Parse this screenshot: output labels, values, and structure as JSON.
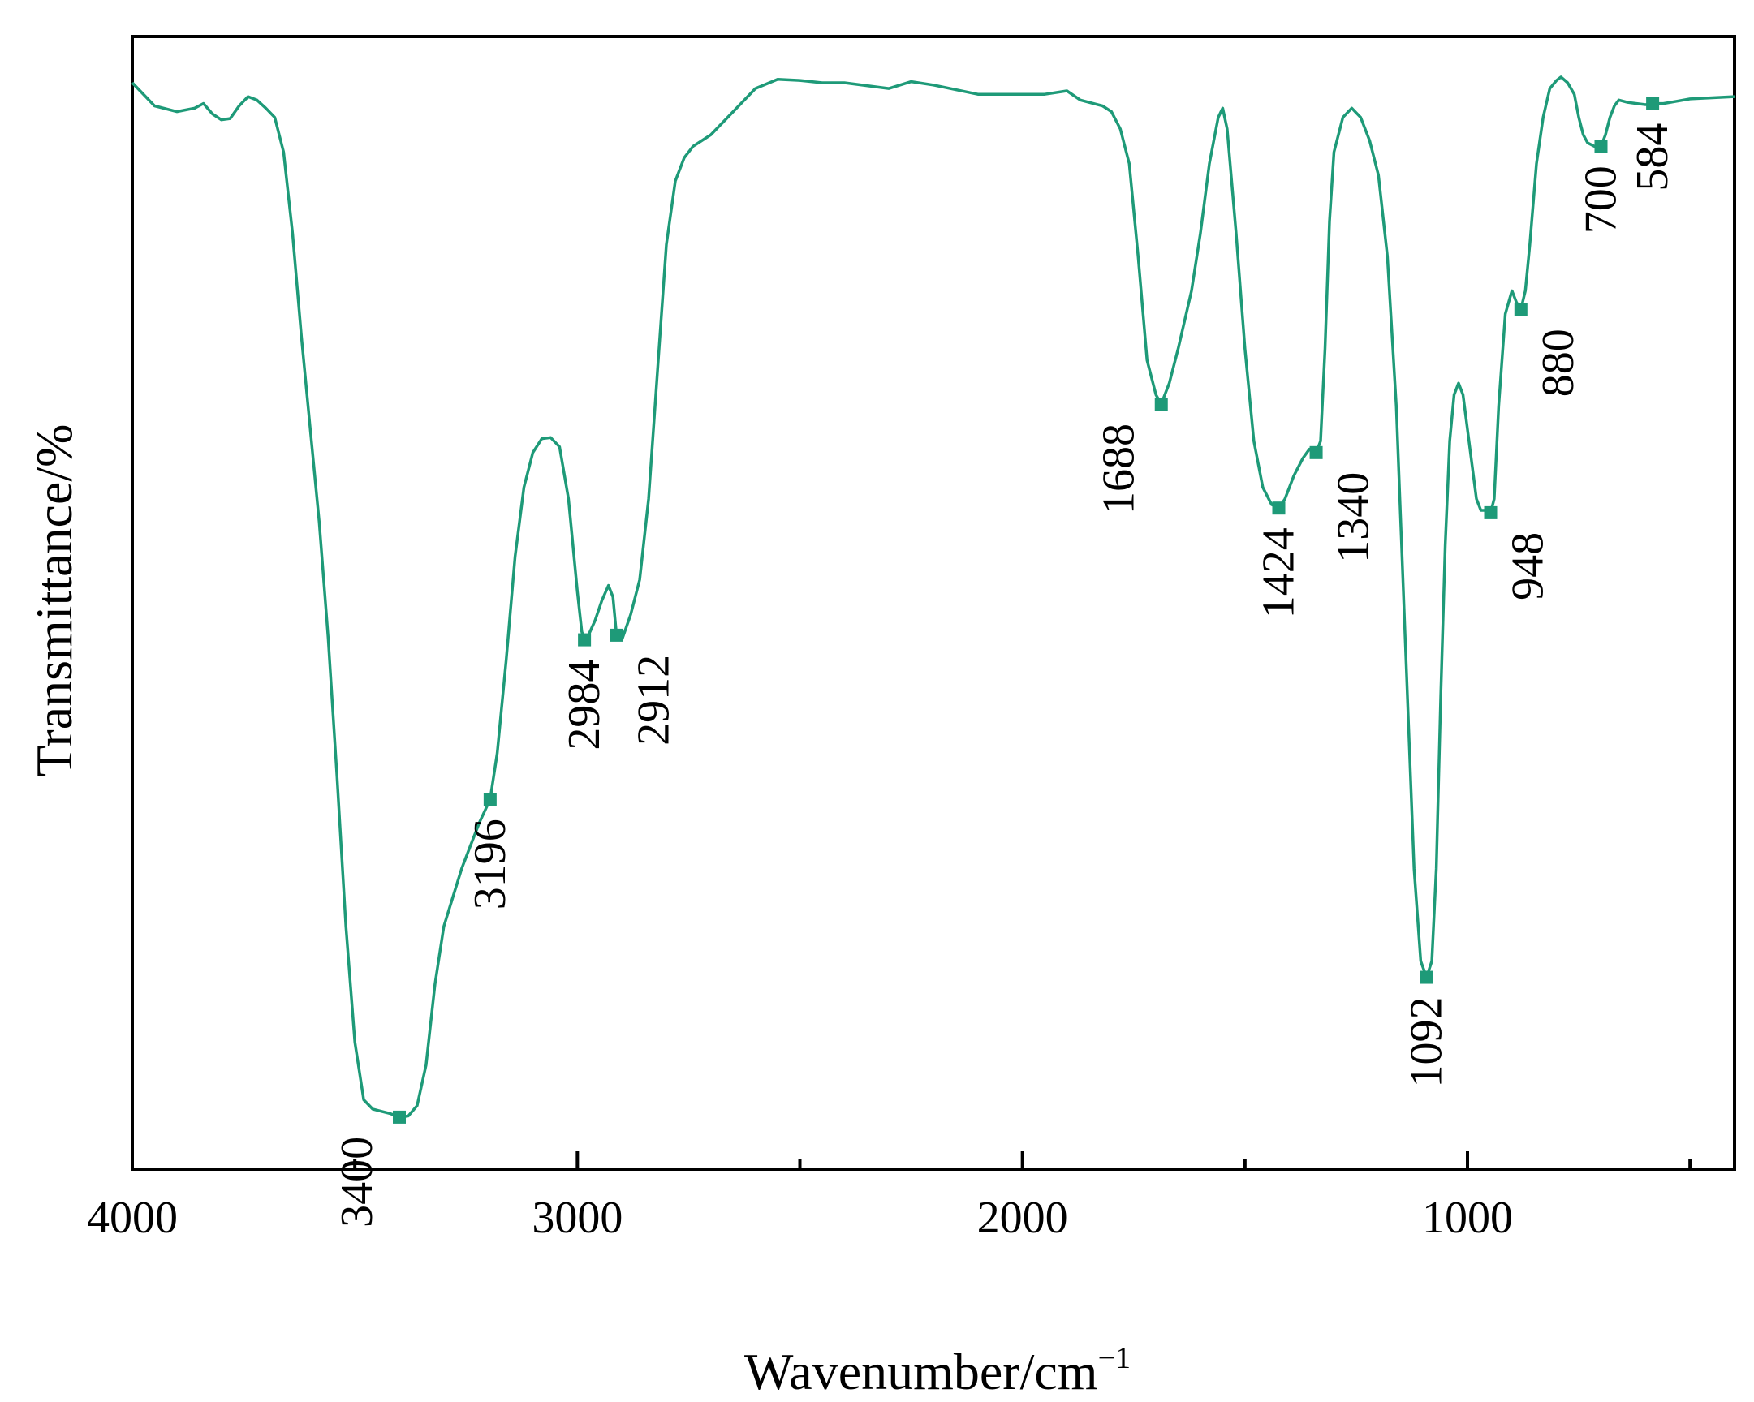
{
  "chart_data": {
    "type": "line",
    "title": "",
    "xlabel": "Wavenumber/cm",
    "xlabel_sup": "−1",
    "ylabel": "Transmittance/%",
    "xlim": [
      4000,
      400
    ],
    "ylim": [
      0,
      100
    ],
    "x_reversed": true,
    "yticks_shown": false,
    "grid": false,
    "line_color": "#1e9a78",
    "marker_color": "#1e9a78",
    "xticks": [
      {
        "value": 4000,
        "label": "4000"
      },
      {
        "value": 3000,
        "label": "3000"
      },
      {
        "value": 2000,
        "label": "2000"
      },
      {
        "value": 1000,
        "label": "1000"
      }
    ],
    "minor_xticks": [
      3500,
      2500,
      1500,
      500
    ],
    "series": [
      {
        "name": "IR spectrum",
        "points": [
          [
            4000,
            98
          ],
          [
            3950,
            96
          ],
          [
            3900,
            95.5
          ],
          [
            3860,
            95.8
          ],
          [
            3840,
            96.2
          ],
          [
            3820,
            95.3
          ],
          [
            3800,
            94.8
          ],
          [
            3780,
            94.9
          ],
          [
            3760,
            96
          ],
          [
            3740,
            96.8
          ],
          [
            3720,
            96.5
          ],
          [
            3700,
            95.8
          ],
          [
            3680,
            95
          ],
          [
            3660,
            92
          ],
          [
            3640,
            85
          ],
          [
            3620,
            76
          ],
          [
            3600,
            68
          ],
          [
            3580,
            60
          ],
          [
            3560,
            50
          ],
          [
            3540,
            38
          ],
          [
            3520,
            25
          ],
          [
            3500,
            15
          ],
          [
            3480,
            10
          ],
          [
            3460,
            9.2
          ],
          [
            3440,
            9
          ],
          [
            3420,
            8.8
          ],
          [
            3400,
            8.5
          ],
          [
            3380,
            8.6
          ],
          [
            3360,
            9.5
          ],
          [
            3340,
            13
          ],
          [
            3320,
            20
          ],
          [
            3300,
            25
          ],
          [
            3280,
            27.5
          ],
          [
            3260,
            30
          ],
          [
            3240,
            32
          ],
          [
            3220,
            34
          ],
          [
            3196,
            36
          ],
          [
            3180,
            40
          ],
          [
            3160,
            48
          ],
          [
            3140,
            57
          ],
          [
            3120,
            63
          ],
          [
            3100,
            66
          ],
          [
            3080,
            67.2
          ],
          [
            3060,
            67.3
          ],
          [
            3040,
            66.5
          ],
          [
            3020,
            62
          ],
          [
            3000,
            54
          ],
          [
            2990,
            50.5
          ],
          [
            2984,
            49.8
          ],
          [
            2975,
            50.2
          ],
          [
            2960,
            51.5
          ],
          [
            2945,
            53.2
          ],
          [
            2930,
            54.5
          ],
          [
            2920,
            53.5
          ],
          [
            2912,
            50.2
          ],
          [
            2900,
            49.8
          ],
          [
            2880,
            52
          ],
          [
            2860,
            55
          ],
          [
            2840,
            62
          ],
          [
            2820,
            73
          ],
          [
            2800,
            84
          ],
          [
            2780,
            89.5
          ],
          [
            2760,
            91.5
          ],
          [
            2740,
            92.5
          ],
          [
            2700,
            93.5
          ],
          [
            2650,
            95.5
          ],
          [
            2600,
            97.5
          ],
          [
            2550,
            98.3
          ],
          [
            2500,
            98.2
          ],
          [
            2450,
            98
          ],
          [
            2400,
            98
          ],
          [
            2300,
            97.5
          ],
          [
            2250,
            98.1
          ],
          [
            2200,
            97.8
          ],
          [
            2100,
            97
          ],
          [
            2000,
            97
          ],
          [
            1950,
            97
          ],
          [
            1900,
            97.3
          ],
          [
            1870,
            96.5
          ],
          [
            1850,
            96.3
          ],
          [
            1820,
            96
          ],
          [
            1800,
            95.5
          ],
          [
            1780,
            94
          ],
          [
            1760,
            91
          ],
          [
            1740,
            83
          ],
          [
            1720,
            74
          ],
          [
            1700,
            71
          ],
          [
            1688,
            70.2
          ],
          [
            1670,
            72
          ],
          [
            1650,
            75
          ],
          [
            1620,
            80
          ],
          [
            1600,
            85
          ],
          [
            1580,
            91
          ],
          [
            1560,
            95
          ],
          [
            1550,
            95.8
          ],
          [
            1540,
            94
          ],
          [
            1520,
            85
          ],
          [
            1500,
            75
          ],
          [
            1480,
            67
          ],
          [
            1460,
            63
          ],
          [
            1440,
            61.5
          ],
          [
            1424,
            61.2
          ],
          [
            1410,
            62
          ],
          [
            1390,
            64
          ],
          [
            1370,
            65.5
          ],
          [
            1355,
            66.3
          ],
          [
            1340,
            66
          ],
          [
            1330,
            67
          ],
          [
            1320,
            75
          ],
          [
            1310,
            86
          ],
          [
            1300,
            92
          ],
          [
            1280,
            95
          ],
          [
            1260,
            95.8
          ],
          [
            1240,
            95
          ],
          [
            1220,
            93
          ],
          [
            1200,
            90
          ],
          [
            1180,
            83
          ],
          [
            1160,
            70
          ],
          [
            1140,
            50
          ],
          [
            1120,
            30
          ],
          [
            1105,
            22
          ],
          [
            1092,
            20.6
          ],
          [
            1080,
            22
          ],
          [
            1070,
            30
          ],
          [
            1060,
            45
          ],
          [
            1050,
            58
          ],
          [
            1040,
            67
          ],
          [
            1030,
            71
          ],
          [
            1020,
            72
          ],
          [
            1010,
            71
          ],
          [
            1000,
            68
          ],
          [
            990,
            65
          ],
          [
            980,
            62
          ],
          [
            970,
            61
          ],
          [
            960,
            61
          ],
          [
            948,
            60.8
          ],
          [
            940,
            62
          ],
          [
            930,
            70
          ],
          [
            915,
            78
          ],
          [
            900,
            80
          ],
          [
            890,
            79
          ],
          [
            880,
            78.4
          ],
          [
            870,
            80
          ],
          [
            860,
            84
          ],
          [
            845,
            91
          ],
          [
            830,
            95
          ],
          [
            815,
            97.5
          ],
          [
            800,
            98.2
          ],
          [
            790,
            98.5
          ],
          [
            775,
            98
          ],
          [
            760,
            97
          ],
          [
            750,
            95
          ],
          [
            740,
            93.5
          ],
          [
            730,
            92.8
          ],
          [
            715,
            92.5
          ],
          [
            700,
            92.5
          ],
          [
            690,
            93.5
          ],
          [
            680,
            95
          ],
          [
            670,
            96
          ],
          [
            660,
            96.5
          ],
          [
            640,
            96.3
          ],
          [
            620,
            96.2
          ],
          [
            600,
            96.1
          ],
          [
            584,
            96.2
          ],
          [
            560,
            96.2
          ],
          [
            530,
            96.4
          ],
          [
            500,
            96.6
          ],
          [
            450,
            96.7
          ],
          [
            400,
            96.8
          ]
        ]
      }
    ],
    "annotations": [
      {
        "label": "3400",
        "x": 3400,
        "y": 8.5,
        "placement": "below-left"
      },
      {
        "label": "3196",
        "x": 3196,
        "y": 36,
        "placement": "below"
      },
      {
        "label": "2984",
        "x": 2984,
        "y": 49.8,
        "placement": "below"
      },
      {
        "label": "2912",
        "x": 2912,
        "y": 50.2,
        "placement": "below-right"
      },
      {
        "label": "1688",
        "x": 1688,
        "y": 70.2,
        "placement": "below-left"
      },
      {
        "label": "1424",
        "x": 1424,
        "y": 61.2,
        "placement": "below"
      },
      {
        "label": "1340",
        "x": 1340,
        "y": 66,
        "placement": "below-right"
      },
      {
        "label": "1092",
        "x": 1092,
        "y": 20.6,
        "placement": "below"
      },
      {
        "label": "948",
        "x": 948,
        "y": 60.8,
        "placement": "below-right"
      },
      {
        "label": "880",
        "x": 880,
        "y": 78.4,
        "placement": "below-right"
      },
      {
        "label": "700",
        "x": 700,
        "y": 92.5,
        "placement": "below"
      },
      {
        "label": "584",
        "x": 584,
        "y": 96.2,
        "placement": "below"
      }
    ]
  }
}
